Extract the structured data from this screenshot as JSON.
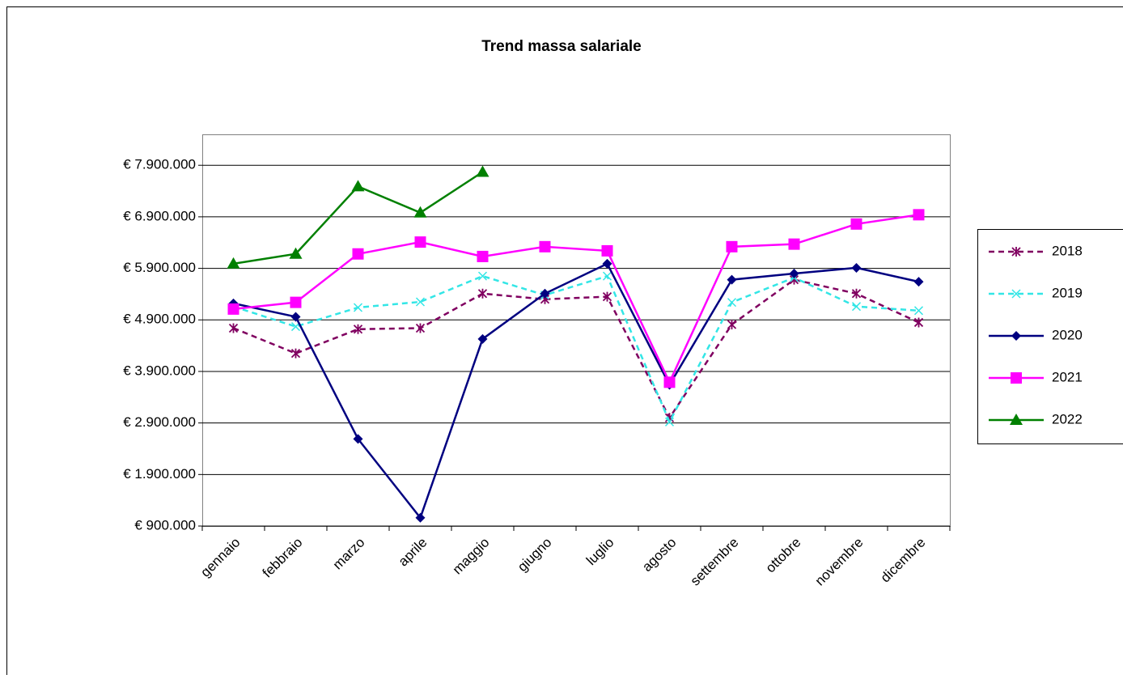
{
  "chart_data": {
    "type": "line",
    "title": "Trend massa salariale",
    "categories": [
      "gennaio",
      "febbraio",
      "marzo",
      "aprile",
      "maggio",
      "giugno",
      "luglio",
      "agosto",
      "settembre",
      "ottobre",
      "novembre",
      "dicembre"
    ],
    "ylim": [
      900000,
      8500000
    ],
    "yticks": [
      {
        "value": 900000,
        "label": "€ 900.000"
      },
      {
        "value": 1900000,
        "label": "€ 1.900.000"
      },
      {
        "value": 2900000,
        "label": "€ 2.900.000"
      },
      {
        "value": 3900000,
        "label": "€ 3.900.000"
      },
      {
        "value": 4900000,
        "label": "€ 4.900.000"
      },
      {
        "value": 5900000,
        "label": "€ 5.900.000"
      },
      {
        "value": 6900000,
        "label": "€ 6.900.000"
      },
      {
        "value": 7900000,
        "label": "€ 7.900.000"
      }
    ],
    "grid": true,
    "legend": "right",
    "series": [
      {
        "name": "2018",
        "color": "#800060",
        "marker": "star",
        "dashed": true,
        "values": [
          4740000,
          4250000,
          4720000,
          4740000,
          5410000,
          5300000,
          5350000,
          3000000,
          4810000,
          5680000,
          5410000,
          4850000
        ]
      },
      {
        "name": "2019",
        "color": "#33e6e6",
        "marker": "x",
        "dashed": true,
        "values": [
          5160000,
          4770000,
          5140000,
          5250000,
          5750000,
          5380000,
          5750000,
          2920000,
          5240000,
          5720000,
          5160000,
          5080000
        ]
      },
      {
        "name": "2020",
        "color": "#000080",
        "marker": "diamond",
        "dashed": false,
        "values": [
          5220000,
          4960000,
          2590000,
          1060000,
          4530000,
          5410000,
          5990000,
          3640000,
          5680000,
          5800000,
          5910000,
          5640000
        ]
      },
      {
        "name": "2021",
        "color": "#ff00ff",
        "marker": "square",
        "dashed": false,
        "values": [
          5110000,
          5240000,
          6180000,
          6410000,
          6130000,
          6320000,
          6240000,
          3690000,
          6320000,
          6370000,
          6760000,
          6940000
        ]
      },
      {
        "name": "2022",
        "color": "#008000",
        "marker": "triangle",
        "dashed": false,
        "values": [
          5990000,
          6180000,
          7490000,
          6980000,
          7770000,
          null,
          null,
          null,
          null,
          null,
          null,
          null
        ]
      }
    ]
  }
}
